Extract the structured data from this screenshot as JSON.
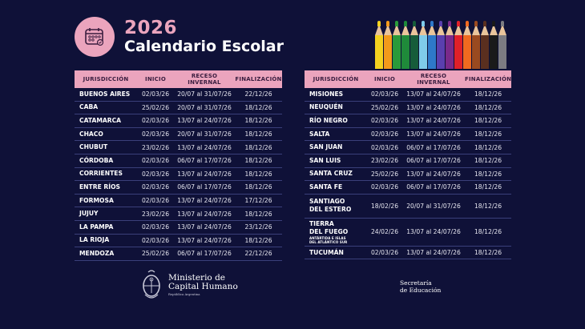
{
  "header": {
    "icon": "calendar-icon",
    "year": "2026",
    "title": "Calendario Escolar"
  },
  "colors": {
    "background": "#0f1138",
    "accent_pink": "#eba4bd",
    "header_text": "#3a1d3f",
    "row_divider": "#3a3f7a"
  },
  "pencils": [
    "#f4d21f",
    "#f39a1b",
    "#2a9a3a",
    "#1f8a3a",
    "#165c3a",
    "#7fcbea",
    "#2e78c9",
    "#5a3fae",
    "#7a2a8a",
    "#e0202a",
    "#f06a1f",
    "#9a4a20",
    "#5a2f1f",
    "#1a1a1a",
    "#7c7c82"
  ],
  "columns": {
    "jurisdiccion": "JURISDICCIÓN",
    "inicio": "INICIO",
    "receso_l1": "RECESO",
    "receso_l2": "INVERNAL",
    "finalizacion": "FINALIZACIÓN"
  },
  "left_table": {
    "rows": [
      {
        "jurisdiccion": "BUENOS AIRES",
        "inicio": "02/03/26",
        "receso": "20/07 al 31/07/26",
        "finalizacion": "22/12/26"
      },
      {
        "jurisdiccion": "CABA",
        "inicio": "25/02/26",
        "receso": "20/07 al 31/07/26",
        "finalizacion": "18/12/26"
      },
      {
        "jurisdiccion": "CATAMARCA",
        "inicio": "02/03/26",
        "receso": "13/07 al 24/07/26",
        "finalizacion": "18/12/26"
      },
      {
        "jurisdiccion": "CHACO",
        "inicio": "02/03/26",
        "receso": "20/07 al 31/07/26",
        "finalizacion": "18/12/26"
      },
      {
        "jurisdiccion": "CHUBUT",
        "inicio": "23/02/26",
        "receso": "13/07 al 24/07/26",
        "finalizacion": "18/12/26"
      },
      {
        "jurisdiccion": "CÓRDOBA",
        "inicio": "02/03/26",
        "receso": "06/07 al 17/07/26",
        "finalizacion": "18/12/26"
      },
      {
        "jurisdiccion": "CORRIENTES",
        "inicio": "02/03/26",
        "receso": "13/07 al 24/07/26",
        "finalizacion": "18/12/26"
      },
      {
        "jurisdiccion": "ENTRE RÍOS",
        "inicio": "02/03/26",
        "receso": "06/07 al 17/07/26",
        "finalizacion": "18/12/26"
      },
      {
        "jurisdiccion": "FORMOSA",
        "inicio": "02/03/26",
        "receso": "13/07 al 24/07/26",
        "finalizacion": "17/12/26"
      },
      {
        "jurisdiccion": "JUJUY",
        "inicio": "23/02/26",
        "receso": "13/07 al 24/07/26",
        "finalizacion": "18/12/26"
      },
      {
        "jurisdiccion": "LA PAMPA",
        "inicio": "02/03/26",
        "receso": "13/07 al 24/07/26",
        "finalizacion": "23/12/26"
      },
      {
        "jurisdiccion": "LA RIOJA",
        "inicio": "02/03/26",
        "receso": "13/07 al 24/07/26",
        "finalizacion": "18/12/26"
      },
      {
        "jurisdiccion": "MENDOZA",
        "inicio": "25/02/26",
        "receso": "06/07 al 17/07/26",
        "finalizacion": "22/12/26"
      }
    ]
  },
  "right_table": {
    "rows": [
      {
        "jurisdiccion": "MISIONES",
        "inicio": "02/03/26",
        "receso": "13/07 al 24/07/26",
        "finalizacion": "18/12/26"
      },
      {
        "jurisdiccion": "NEUQUÉN",
        "inicio": "25/02/26",
        "receso": "13/07 al 24/07/26",
        "finalizacion": "18/12/26"
      },
      {
        "jurisdiccion": "RÍO NEGRO",
        "inicio": "02/03/26",
        "receso": "13/07 al 24/07/26",
        "finalizacion": "18/12/26"
      },
      {
        "jurisdiccion": "SALTA",
        "inicio": "02/03/26",
        "receso": "13/07 al 24/07/26",
        "finalizacion": "18/12/26"
      },
      {
        "jurisdiccion": "SAN JUAN",
        "inicio": "02/03/26",
        "receso": "06/07 al 17/07/26",
        "finalizacion": "18/12/26"
      },
      {
        "jurisdiccion": "SAN LUIS",
        "inicio": "23/02/26",
        "receso": "06/07 al 17/07/26",
        "finalizacion": "18/12/26"
      },
      {
        "jurisdiccion": "SANTA CRUZ",
        "inicio": "25/02/26",
        "receso": "13/07 al 24/07/26",
        "finalizacion": "18/12/26"
      },
      {
        "jurisdiccion": "SANTA FE",
        "inicio": "02/03/26",
        "receso": "06/07 al 17/07/26",
        "finalizacion": "18/12/26"
      },
      {
        "jurisdiccion_l1": "SANTIAGO",
        "jurisdiccion_l2": "DEL ESTERO",
        "inicio": "18/02/26",
        "receso": "20/07 al 31/07/26",
        "finalizacion": "18/12/26"
      },
      {
        "jurisdiccion_l1": "TIERRA",
        "jurisdiccion_l2": "DEL FUEGO",
        "note_l1": "ANTÁRTIDA E ISLAS",
        "note_l2": "DEL ATLÁNTICO SUR",
        "inicio": "24/02/26",
        "receso": "13/07 al 24/07/26",
        "finalizacion": "18/12/26"
      },
      {
        "jurisdiccion": "TUCUMÁN",
        "inicio": "02/03/26",
        "receso": "13/07 al 24/07/26",
        "finalizacion": "18/12/26"
      }
    ]
  },
  "footer": {
    "ministry_icon": "argentina-coat-of-arms-icon",
    "ministry_l1": "Ministerio de",
    "ministry_l2": "Capital Humano",
    "ministry_l3": "República Argentina",
    "secretary_l1": "Secretaría",
    "secretary_l2": "de Educación"
  }
}
